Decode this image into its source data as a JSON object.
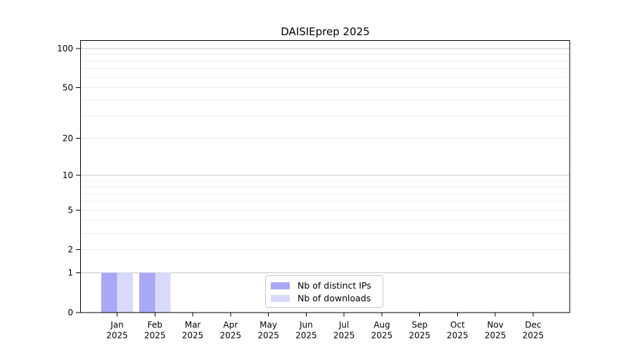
{
  "chart_data": {
    "type": "bar",
    "title": "DAISIEprep 2025",
    "categories": [
      "Jan",
      "Feb",
      "Mar",
      "Apr",
      "May",
      "Jun",
      "Jul",
      "Aug",
      "Sep",
      "Oct",
      "Nov",
      "Dec"
    ],
    "year_label": "2025",
    "series": [
      {
        "name": "Nb of distinct IPs",
        "color": "#a8a8f7",
        "values": [
          1,
          1,
          0,
          0,
          0,
          0,
          0,
          0,
          0,
          0,
          0,
          0
        ]
      },
      {
        "name": "Nb of downloads",
        "color": "#d9d9fb",
        "values": [
          1,
          1,
          0,
          0,
          0,
          0,
          0,
          0,
          0,
          0,
          0,
          0
        ]
      }
    ],
    "y_axis": {
      "scale": "log1p",
      "labeled_ticks": [
        0,
        1,
        2,
        5,
        10,
        20,
        50,
        100
      ],
      "major_gridlines": [
        1,
        10,
        100
      ],
      "minor_gridlines": [
        2,
        3,
        4,
        5,
        6,
        7,
        8,
        9,
        20,
        30,
        40,
        50,
        60,
        70,
        80,
        90,
        110
      ]
    },
    "ylim": [
      0,
      115
    ],
    "grid": {
      "major_color": "#c9c9c9",
      "minor_color": "#ededed"
    },
    "frame_color": "#000000",
    "text_color": "#000000",
    "legend": {
      "position": "lower center"
    }
  }
}
